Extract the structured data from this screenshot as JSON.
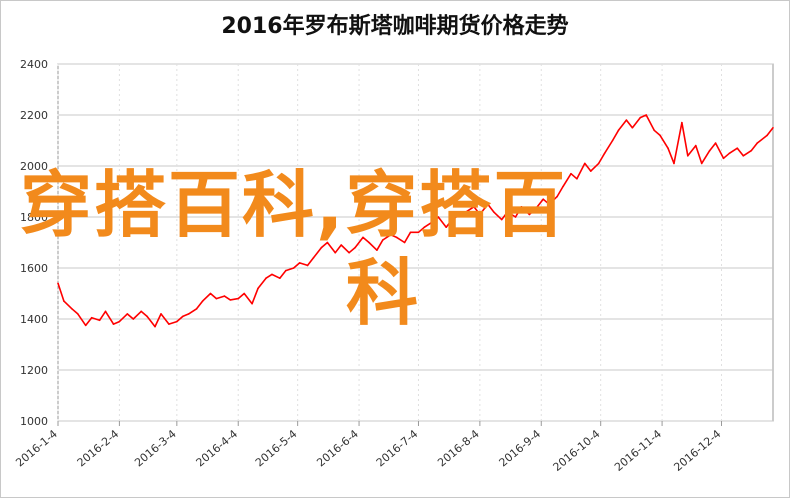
{
  "chart_data": {
    "type": "line",
    "title": "2016年罗布斯塔咖啡期货价格走势",
    "xlabel": "",
    "ylabel": "",
    "ylim": [
      1000,
      2400
    ],
    "yticks": [
      1000,
      1200,
      1400,
      1600,
      1800,
      2000,
      2200,
      2400
    ],
    "xtick_labels": [
      "2016-1-4",
      "2016-2-4",
      "2016-3-4",
      "2016-4-4",
      "2016-5-4",
      "2016-6-4",
      "2016-7-4",
      "2016-8-4",
      "2016-9-4",
      "2016-10-4",
      "2016-11-4",
      "2016-12-4"
    ],
    "grid": true,
    "legend": "none",
    "line_color": "#ff0000",
    "series": [
      {
        "x": [
          "2016-1-4",
          "2016-1-7",
          "2016-1-11",
          "2016-1-14",
          "2016-1-18",
          "2016-1-21",
          "2016-1-25",
          "2016-1-28",
          "2016-2-1",
          "2016-2-4",
          "2016-2-8",
          "2016-2-11",
          "2016-2-15",
          "2016-2-18",
          "2016-2-22",
          "2016-2-25",
          "2016-2-29",
          "2016-3-4",
          "2016-3-7",
          "2016-3-10",
          "2016-3-14",
          "2016-3-17",
          "2016-3-21",
          "2016-3-24",
          "2016-3-28",
          "2016-3-31",
          "2016-4-4",
          "2016-4-7",
          "2016-4-11",
          "2016-4-14",
          "2016-4-18",
          "2016-4-21",
          "2016-4-25",
          "2016-4-28",
          "2016-5-2",
          "2016-5-5",
          "2016-5-9",
          "2016-5-12",
          "2016-5-16",
          "2016-5-19",
          "2016-5-23",
          "2016-5-26",
          "2016-5-30",
          "2016-6-2",
          "2016-6-6",
          "2016-6-9",
          "2016-6-13",
          "2016-6-16",
          "2016-6-20",
          "2016-6-23",
          "2016-6-27",
          "2016-6-30",
          "2016-7-4",
          "2016-7-7",
          "2016-7-11",
          "2016-7-14",
          "2016-7-18",
          "2016-7-21",
          "2016-7-25",
          "2016-7-28",
          "2016-8-1",
          "2016-8-4",
          "2016-8-8",
          "2016-8-11",
          "2016-8-15",
          "2016-8-18",
          "2016-8-22",
          "2016-8-25",
          "2016-8-29",
          "2016-9-1",
          "2016-9-5",
          "2016-9-8",
          "2016-9-12",
          "2016-9-15",
          "2016-9-19",
          "2016-9-22",
          "2016-9-26",
          "2016-9-29",
          "2016-10-3",
          "2016-10-6",
          "2016-10-10",
          "2016-10-13",
          "2016-10-17",
          "2016-10-20",
          "2016-10-24",
          "2016-10-27",
          "2016-10-31",
          "2016-11-3",
          "2016-11-7",
          "2016-11-10",
          "2016-11-14",
          "2016-11-17",
          "2016-11-21",
          "2016-11-24",
          "2016-11-28",
          "2016-12-1",
          "2016-12-5",
          "2016-12-8",
          "2016-12-12",
          "2016-12-15",
          "2016-12-19",
          "2016-12-22",
          "2016-12-27",
          "2016-12-30"
        ],
        "values": [
          1540,
          1470,
          1440,
          1420,
          1375,
          1405,
          1395,
          1430,
          1380,
          1390,
          1420,
          1400,
          1430,
          1410,
          1370,
          1420,
          1380,
          1390,
          1410,
          1420,
          1440,
          1470,
          1500,
          1480,
          1490,
          1475,
          1480,
          1500,
          1460,
          1520,
          1560,
          1575,
          1560,
          1590,
          1600,
          1620,
          1610,
          1640,
          1680,
          1700,
          1660,
          1690,
          1660,
          1680,
          1720,
          1700,
          1670,
          1710,
          1730,
          1720,
          1700,
          1740,
          1740,
          1760,
          1780,
          1800,
          1760,
          1790,
          1810,
          1820,
          1840,
          1810,
          1850,
          1820,
          1790,
          1820,
          1800,
          1840,
          1810,
          1830,
          1870,
          1850,
          1880,
          1920,
          1970,
          1950,
          2010,
          1980,
          2010,
          2050,
          2100,
          2140,
          2180,
          2150,
          2190,
          2200,
          2140,
          2120,
          2070,
          2010,
          2170,
          2040,
          2080,
          2010,
          2060,
          2090,
          2030,
          2050,
          2070,
          2040,
          2060,
          2090,
          2120,
          2150
        ]
      }
    ]
  },
  "watermark": {
    "line1": "穿搭百科,穿搭百",
    "line2": "科"
  }
}
